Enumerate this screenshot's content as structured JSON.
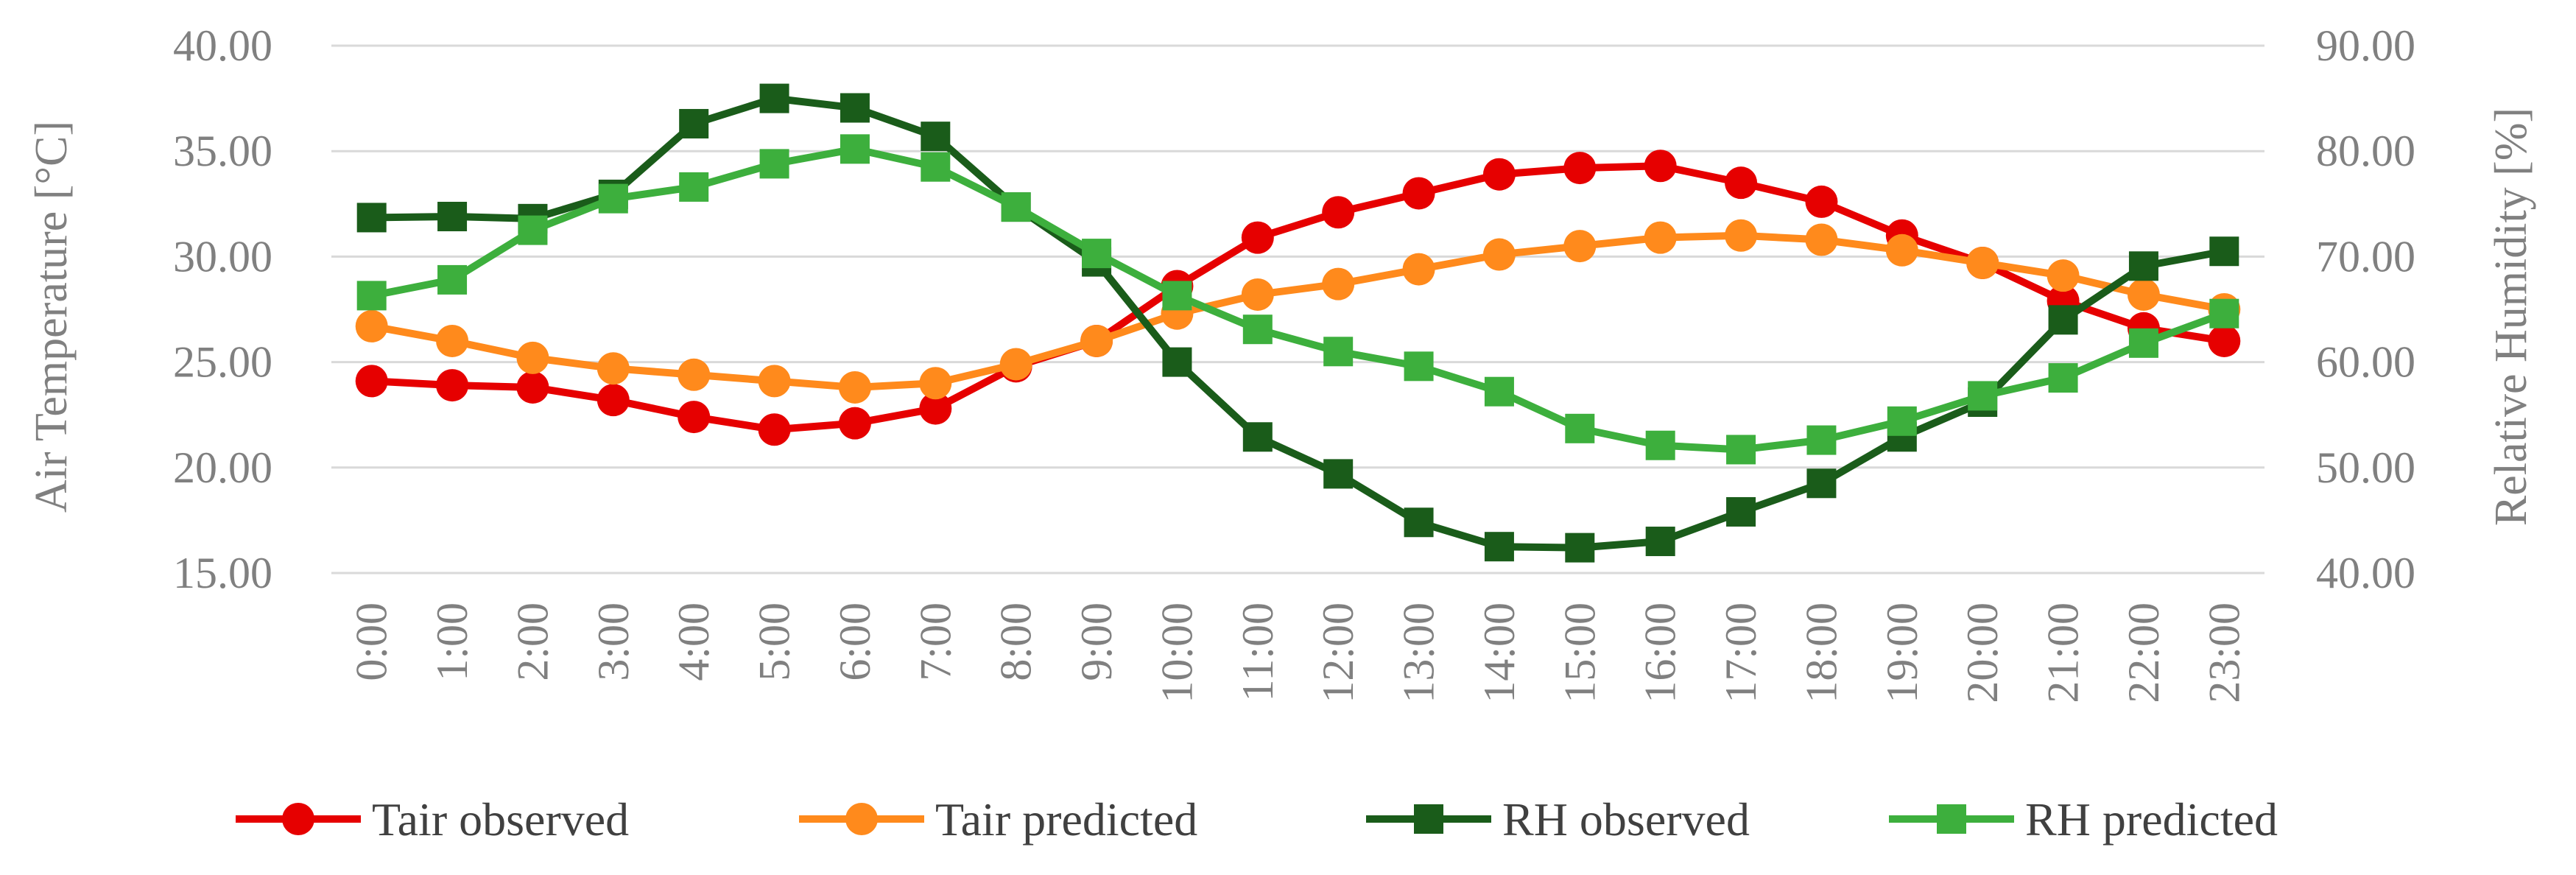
{
  "chart_data": {
    "type": "line",
    "title": "",
    "x": [
      "0:00",
      "1:00",
      "2:00",
      "3:00",
      "4:00",
      "5:00",
      "6:00",
      "7:00",
      "8:00",
      "9:00",
      "10:00",
      "11:00",
      "12:00",
      "13:00",
      "14:00",
      "15:00",
      "16:00",
      "17:00",
      "18:00",
      "19:00",
      "20:00",
      "21:00",
      "22:00",
      "23:00"
    ],
    "xlabel": "",
    "y_left": {
      "label": "Air Temperature [°C]",
      "ylim": [
        15,
        40
      ],
      "ticks": [
        "15.00",
        "20.00",
        "25.00",
        "30.00",
        "35.00",
        "40.00"
      ]
    },
    "y_right": {
      "label": "Relative Humidity [%]",
      "ylim": [
        40,
        90
      ],
      "ticks": [
        "40.00",
        "50.00",
        "60.00",
        "70.00",
        "80.00",
        "90.00"
      ]
    },
    "grid": true,
    "legend_position": "bottom",
    "series": [
      {
        "name": "Tair observed",
        "axis": "left",
        "marker": "circle",
        "color": "#e60000",
        "values": [
          24.1,
          23.9,
          23.8,
          23.2,
          22.4,
          21.8,
          22.1,
          22.8,
          24.8,
          26.0,
          28.6,
          30.9,
          32.1,
          33.0,
          33.9,
          34.2,
          34.3,
          33.5,
          32.6,
          31.0,
          29.7,
          27.9,
          26.6,
          26.0
        ]
      },
      {
        "name": "Tair predicted",
        "axis": "left",
        "marker": "circle",
        "color": "#ff8a1c",
        "values": [
          26.7,
          26.0,
          25.2,
          24.7,
          24.4,
          24.1,
          23.8,
          24.0,
          24.9,
          26.0,
          27.3,
          28.2,
          28.7,
          29.4,
          30.1,
          30.5,
          30.9,
          31.0,
          30.8,
          30.3,
          29.7,
          29.1,
          28.2,
          27.5
        ]
      },
      {
        "name": "RH observed",
        "axis": "right",
        "marker": "square",
        "color": "#1a5c1a",
        "values": [
          73.7,
          73.8,
          73.6,
          75.9,
          82.6,
          85.0,
          84.1,
          81.4,
          74.7,
          69.5,
          60.0,
          52.9,
          49.4,
          44.8,
          42.5,
          42.4,
          43.0,
          45.8,
          48.5,
          52.9,
          56.2,
          64.0,
          69.1,
          70.5
        ]
      },
      {
        "name": "RH predicted",
        "axis": "right",
        "marker": "square",
        "color": "#3daf3d",
        "values": [
          66.3,
          67.8,
          72.5,
          75.5,
          76.6,
          78.8,
          80.2,
          78.5,
          74.7,
          70.3,
          66.3,
          63.1,
          61.0,
          59.6,
          57.2,
          53.7,
          52.1,
          51.7,
          52.6,
          54.4,
          56.8,
          58.5,
          61.8,
          64.6
        ]
      }
    ]
  }
}
